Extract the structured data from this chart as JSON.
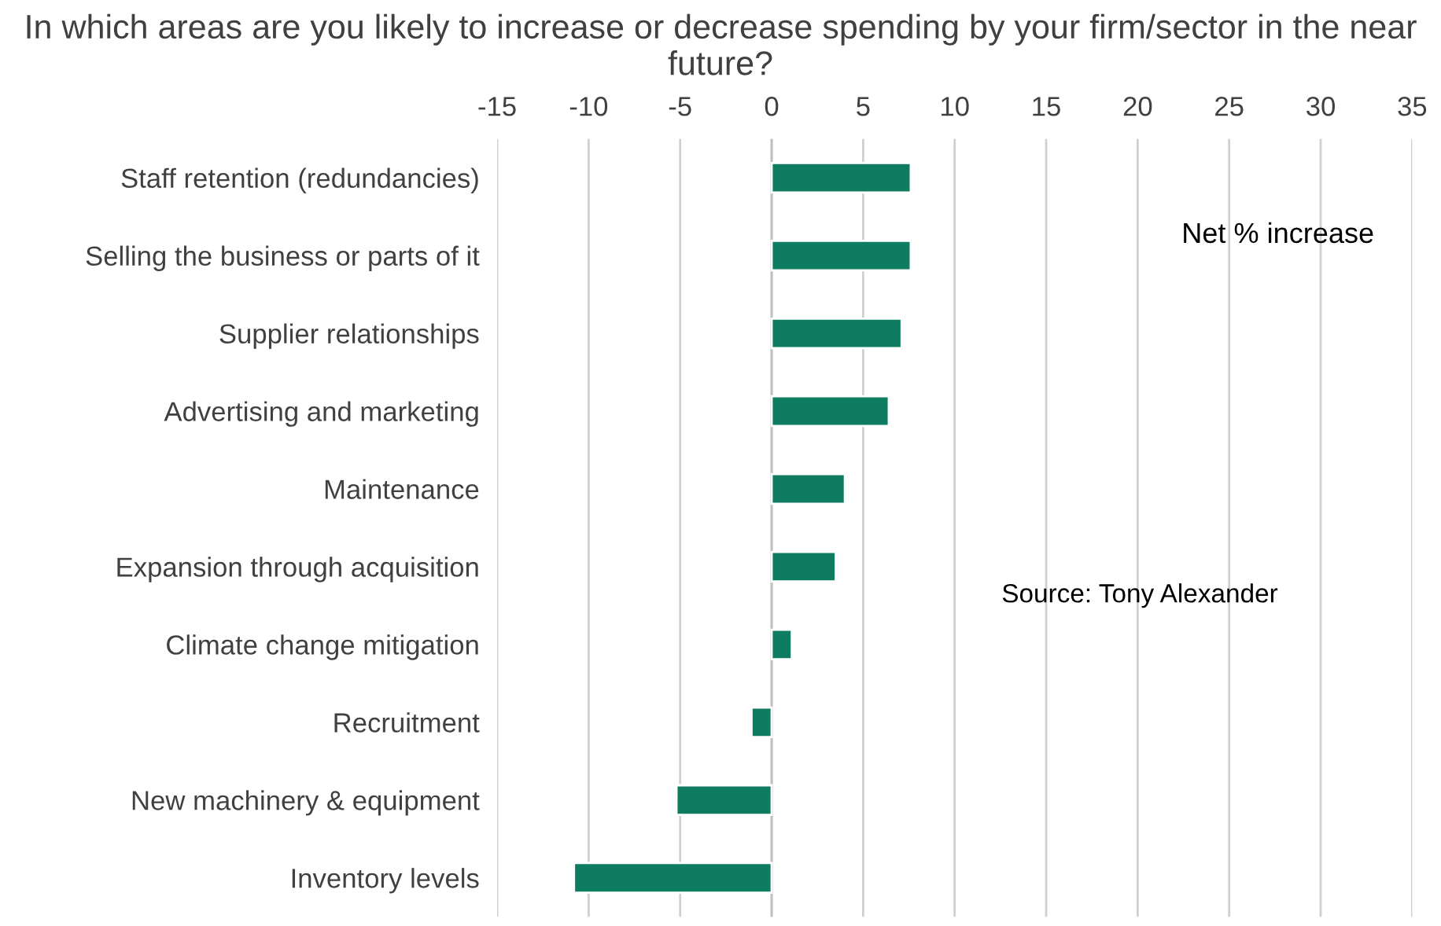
{
  "chart_data": {
    "type": "bar",
    "orientation": "horizontal",
    "title": "In which areas are you likely to increase or decrease spending by your firm/sector in the near future?",
    "categories": [
      "Staff retention (redundancies)",
      "Selling the business or parts of it",
      "Supplier relationships",
      "Advertising and marketing",
      "Maintenance",
      "Expansion through acquisition",
      "Climate change mitigation",
      "Recruitment",
      "New machinery & equipment",
      "Inventory levels"
    ],
    "values": [
      7.6,
      7.6,
      7.1,
      6.4,
      4.0,
      3.5,
      1.1,
      -1.1,
      -5.2,
      -10.8
    ],
    "color": "#0e7c61",
    "xlim": [
      -15,
      35
    ],
    "xticks": [
      -15,
      -10,
      -5,
      0,
      5,
      10,
      15,
      20,
      25,
      30,
      35
    ],
    "grid": "x",
    "annotations": [
      "Net % increase",
      "Source: Tony Alexander"
    ]
  }
}
